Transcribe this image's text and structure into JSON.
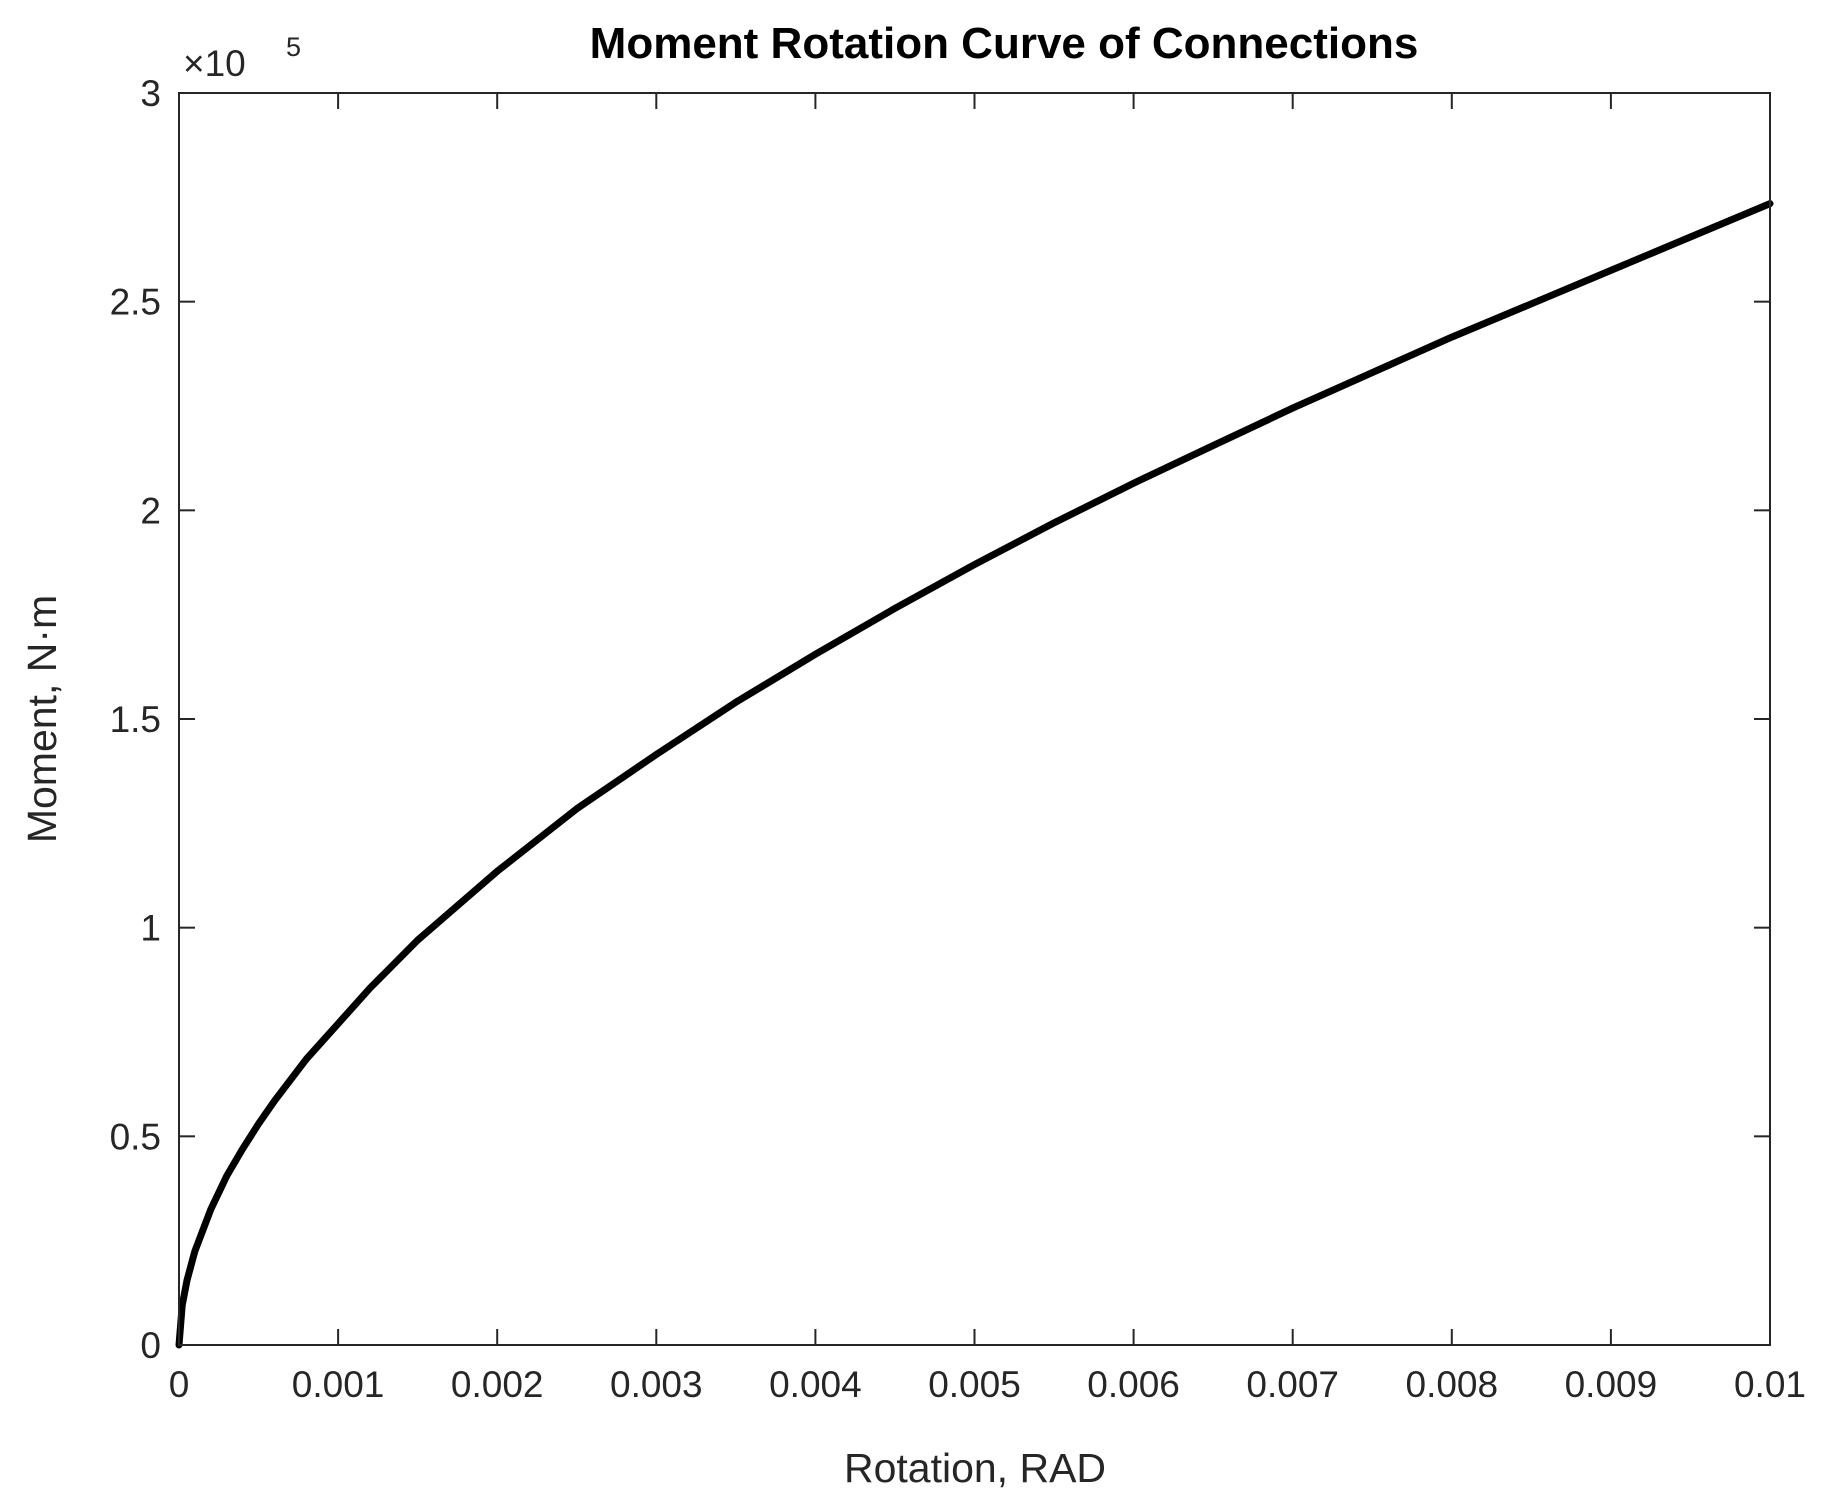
{
  "chart_data": {
    "type": "line",
    "title": "Moment Rotation Curve of Connections",
    "xlabel": "Rotation, RAD",
    "ylabel": "Moment,   N·m",
    "y_exponent_base": "×10",
    "y_exponent_power": "5",
    "xlim": [
      0,
      0.01
    ],
    "ylim": [
      0,
      3
    ],
    "xticks": [
      0,
      0.001,
      0.002,
      0.003,
      0.004,
      0.005,
      0.006,
      0.007,
      0.008,
      0.009,
      0.01
    ],
    "xtick_labels": [
      "0",
      "0.001",
      "0.002",
      "0.003",
      "0.004",
      "0.005",
      "0.006",
      "0.007",
      "0.008",
      "0.009",
      "0.01"
    ],
    "yticks": [
      0,
      0.5,
      1,
      1.5,
      2,
      2.5,
      3
    ],
    "ytick_labels": [
      "0",
      "0.5",
      "1",
      "1.5",
      "2",
      "2.5",
      "3"
    ],
    "grid": false,
    "series": [
      {
        "color": "#000000",
        "x": [
          0,
          2e-05,
          5e-05,
          0.0001,
          0.0002,
          0.0003,
          0.0004,
          0.0005,
          0.0006,
          0.0008,
          0.001,
          0.0012,
          0.0015,
          0.002,
          0.0025,
          0.003,
          0.0035,
          0.004,
          0.0045,
          0.005,
          0.0055,
          0.006,
          0.0065,
          0.007,
          0.0075,
          0.008,
          0.0085,
          0.009,
          0.0095,
          0.01
        ],
        "y": [
          0,
          0.095,
          0.155,
          0.225,
          0.325,
          0.405,
          0.47,
          0.53,
          0.585,
          0.685,
          0.77,
          0.855,
          0.97,
          1.135,
          1.285,
          1.415,
          1.54,
          1.655,
          1.765,
          1.87,
          1.97,
          2.065,
          2.155,
          2.245,
          2.33,
          2.415,
          2.495,
          2.575,
          2.655,
          2.735
        ]
      }
    ]
  }
}
